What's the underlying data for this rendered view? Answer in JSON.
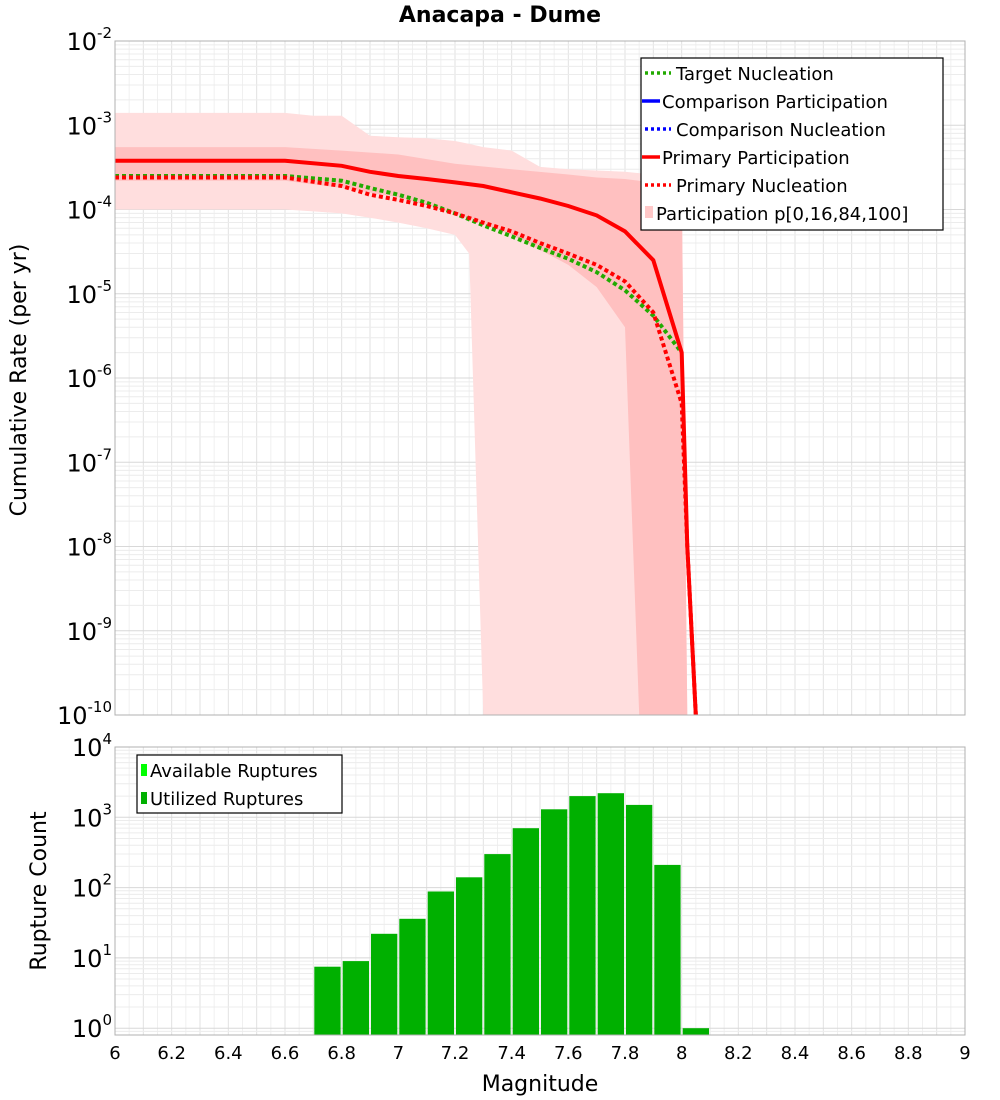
{
  "chart_data": [
    {
      "type": "line",
      "title": "Anacapa - Dume",
      "xlabel": "Magnitude",
      "ylabel": "Cumulative Rate (per yr)",
      "yscale": "log",
      "xlim": [
        6,
        9
      ],
      "ylim": [
        1e-10,
        0.01
      ],
      "y_ticks": [
        {
          "base": "10",
          "exp": "-10",
          "value": 1e-10
        },
        {
          "base": "10",
          "exp": "-9",
          "value": 1e-09
        },
        {
          "base": "10",
          "exp": "-8",
          "value": 1e-08
        },
        {
          "base": "10",
          "exp": "-7",
          "value": 1e-07
        },
        {
          "base": "10",
          "exp": "-6",
          "value": 1e-06
        },
        {
          "base": "10",
          "exp": "-5",
          "value": 1e-05
        },
        {
          "base": "10",
          "exp": "-4",
          "value": 0.0001
        },
        {
          "base": "10",
          "exp": "-3",
          "value": 0.001
        },
        {
          "base": "10",
          "exp": "-2",
          "value": 0.01
        }
      ],
      "legend_position": "top-right",
      "legend": [
        {
          "label": "Target Nucleation",
          "color": "#22aa00",
          "style": "dotted"
        },
        {
          "label": "Comparison Participation",
          "color": "#0000ff",
          "style": "solid"
        },
        {
          "label": "Comparison Nucleation",
          "color": "#0000ff",
          "style": "dotted"
        },
        {
          "label": "Primary Participation",
          "color": "#ff0000",
          "style": "solid"
        },
        {
          "label": "Primary Nucleation",
          "color": "#ff0000",
          "style": "dotted"
        },
        {
          "label": "Participation p[0,16,84,100]",
          "color": "#ffc8c8",
          "style": "band"
        }
      ],
      "bands": [
        {
          "name": "Participation p[0,100]",
          "color": "#ffdede",
          "x": [
            6.0,
            6.6,
            6.7,
            6.8,
            6.9,
            7.0,
            7.1,
            7.2,
            7.25,
            7.3,
            7.4,
            7.5,
            7.6,
            7.7,
            7.8,
            7.9,
            8.0,
            8.02
          ],
          "upper": [
            0.0014,
            0.0014,
            0.0013,
            0.0013,
            0.00075,
            0.00072,
            0.0007,
            0.00065,
            0.0006,
            0.00055,
            0.0005,
            0.00032,
            0.0003,
            0.00029,
            0.00028,
            0.00026,
            0.00025,
            1e-10
          ],
          "lower": [
            0.0001,
            0.0001,
            9.5e-05,
            9e-05,
            8e-05,
            7e-05,
            6e-05,
            5e-05,
            3e-05,
            1e-10,
            1e-10,
            1e-10,
            1e-10,
            1e-10,
            1e-10,
            1e-10,
            1e-10,
            1e-10
          ]
        },
        {
          "name": "Participation p[16,84]",
          "color": "#ffc0c0",
          "x": [
            6.0,
            6.6,
            6.8,
            7.0,
            7.2,
            7.4,
            7.6,
            7.7,
            7.8,
            7.85,
            7.9,
            8.0,
            8.02
          ],
          "upper": [
            0.00055,
            0.00055,
            0.0005,
            0.00045,
            0.00035,
            0.0003,
            0.00026,
            0.00024,
            0.00023,
            0.00022,
            0.0002,
            0.0002,
            1e-10
          ],
          "lower": [
            0.00022,
            0.00022,
            0.00018,
            0.00014,
            9e-05,
            5e-05,
            2.2e-05,
            1.2e-05,
            4e-06,
            1e-10,
            1e-10,
            1e-10,
            1e-10
          ]
        }
      ],
      "series": [
        {
          "name": "Target Nucleation",
          "color": "#22aa00",
          "style": "dotted",
          "x": [
            6.0,
            6.6,
            6.8,
            6.9,
            7.0,
            7.1,
            7.2,
            7.3,
            7.4,
            7.5,
            7.6,
            7.7,
            7.8,
            7.9,
            8.0
          ],
          "y": [
            0.00025,
            0.00025,
            0.00022,
            0.00018,
            0.00015,
            0.00012,
            9e-05,
            6.5e-05,
            4.8e-05,
            3.5e-05,
            2.6e-05,
            1.8e-05,
            1.1e-05,
            5.5e-06,
            2e-06
          ]
        },
        {
          "name": "Primary Nucleation",
          "color": "#ff0000",
          "style": "dotted",
          "x": [
            6.0,
            6.6,
            6.8,
            6.9,
            7.0,
            7.1,
            7.2,
            7.3,
            7.4,
            7.5,
            7.6,
            7.7,
            7.8,
            7.9,
            8.0,
            8.02,
            8.05
          ],
          "y": [
            0.00024,
            0.00024,
            0.00019,
            0.00015,
            0.00013,
            0.00011,
            9e-05,
            7e-05,
            5.5e-05,
            4e-05,
            3e-05,
            2.2e-05,
            1.4e-05,
            6e-06,
            5e-07,
            1e-08,
            1e-10
          ]
        },
        {
          "name": "Primary Participation",
          "color": "#ff0000",
          "style": "solid",
          "x": [
            6.0,
            6.6,
            6.8,
            6.9,
            7.0,
            7.1,
            7.2,
            7.3,
            7.4,
            7.5,
            7.6,
            7.7,
            7.8,
            7.9,
            8.0,
            8.02,
            8.05
          ],
          "y": [
            0.00038,
            0.00038,
            0.00033,
            0.00028,
            0.00025,
            0.00023,
            0.00021,
            0.00019,
            0.00016,
            0.000135,
            0.00011,
            8.5e-05,
            5.5e-05,
            2.5e-05,
            2e-06,
            1e-08,
            1e-10
          ]
        }
      ]
    },
    {
      "type": "bar",
      "xlabel": "Magnitude",
      "ylabel": "Rupture Count",
      "yscale": "log",
      "xlim": [
        6,
        9
      ],
      "ylim": [
        0.8,
        10000
      ],
      "x_ticks": [
        "6",
        "6.2",
        "6.4",
        "6.6",
        "6.8",
        "7",
        "7.2",
        "7.4",
        "7.6",
        "7.8",
        "8",
        "8.2",
        "8.4",
        "8.6",
        "8.8",
        "9"
      ],
      "y_ticks": [
        {
          "base": "10",
          "exp": "0",
          "value": 1
        },
        {
          "base": "10",
          "exp": "1",
          "value": 10
        },
        {
          "base": "10",
          "exp": "2",
          "value": 100
        },
        {
          "base": "10",
          "exp": "3",
          "value": 1000
        },
        {
          "base": "10",
          "exp": "4",
          "value": 10000
        }
      ],
      "legend_position": "top-left",
      "legend": [
        {
          "label": "Available Ruptures",
          "color": "#00ff00"
        },
        {
          "label": "Utilized Ruptures",
          "color": "#00b000"
        }
      ],
      "bin_width": 0.1,
      "categories": [
        6.75,
        6.85,
        6.95,
        7.05,
        7.15,
        7.25,
        7.35,
        7.45,
        7.55,
        7.65,
        7.75,
        7.85,
        7.95,
        8.05
      ],
      "values": [
        7.5,
        9,
        22,
        36,
        88,
        140,
        300,
        700,
        1300,
        2000,
        2200,
        1500,
        210,
        1
      ]
    }
  ]
}
